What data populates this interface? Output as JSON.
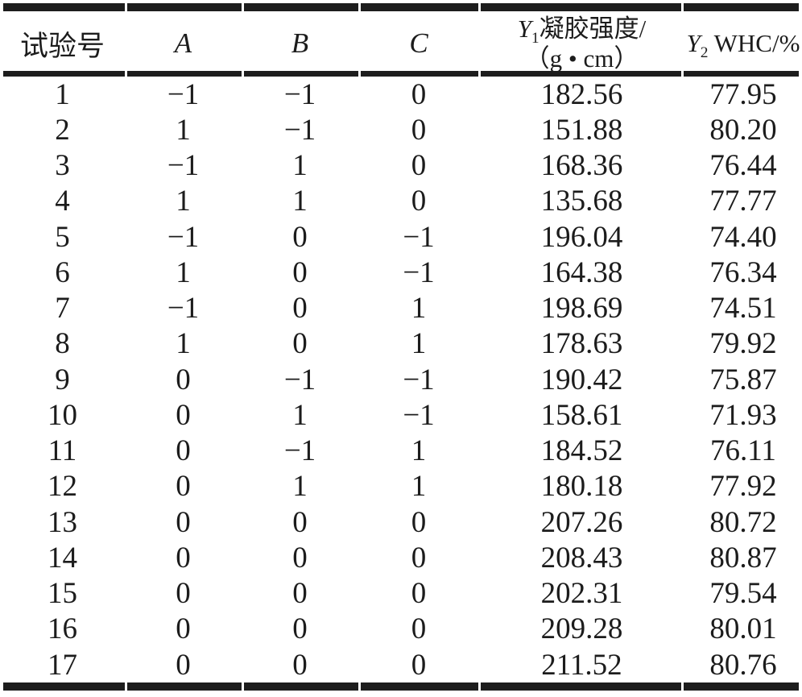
{
  "table": {
    "title_semantic": "box-behnken-design-results",
    "columns": [
      {
        "label": "试验号",
        "italic": false
      },
      {
        "label": "A",
        "italic": true
      },
      {
        "label": "B",
        "italic": true
      },
      {
        "label": "C",
        "italic": true
      },
      {
        "var": "Y",
        "sub": "1",
        "line1_rest": "凝胶强度/",
        "line2": "（g • cm）"
      },
      {
        "var": "Y",
        "sub": "2",
        "rest": " WHC/%"
      }
    ],
    "rows": [
      [
        "1",
        "−1",
        "−1",
        "0",
        "182.56",
        "77.95"
      ],
      [
        "2",
        "1",
        "−1",
        "0",
        "151.88",
        "80.20"
      ],
      [
        "3",
        "−1",
        "1",
        "0",
        "168.36",
        "76.44"
      ],
      [
        "4",
        "1",
        "1",
        "0",
        "135.68",
        "77.77"
      ],
      [
        "5",
        "−1",
        "0",
        "−1",
        "196.04",
        "74.40"
      ],
      [
        "6",
        "1",
        "0",
        "−1",
        "164.38",
        "76.34"
      ],
      [
        "7",
        "−1",
        "0",
        "1",
        "198.69",
        "74.51"
      ],
      [
        "8",
        "1",
        "0",
        "1",
        "178.63",
        "79.92"
      ],
      [
        "9",
        "0",
        "−1",
        "−1",
        "190.42",
        "75.87"
      ],
      [
        "10",
        "0",
        "1",
        "−1",
        "158.61",
        "71.93"
      ],
      [
        "11",
        "0",
        "−1",
        "1",
        "184.52",
        "76.11"
      ],
      [
        "12",
        "0",
        "1",
        "1",
        "180.18",
        "77.92"
      ],
      [
        "13",
        "0",
        "0",
        "0",
        "207.26",
        "80.72"
      ],
      [
        "14",
        "0",
        "0",
        "0",
        "208.43",
        "80.87"
      ],
      [
        "15",
        "0",
        "0",
        "0",
        "202.31",
        "79.54"
      ],
      [
        "16",
        "0",
        "0",
        "0",
        "209.28",
        "80.01"
      ],
      [
        "17",
        "0",
        "0",
        "0",
        "211.52",
        "80.76"
      ]
    ]
  },
  "colors": {
    "text": "#1c1c1c",
    "rule": "#1d1d1d",
    "background": "#ffffff"
  }
}
